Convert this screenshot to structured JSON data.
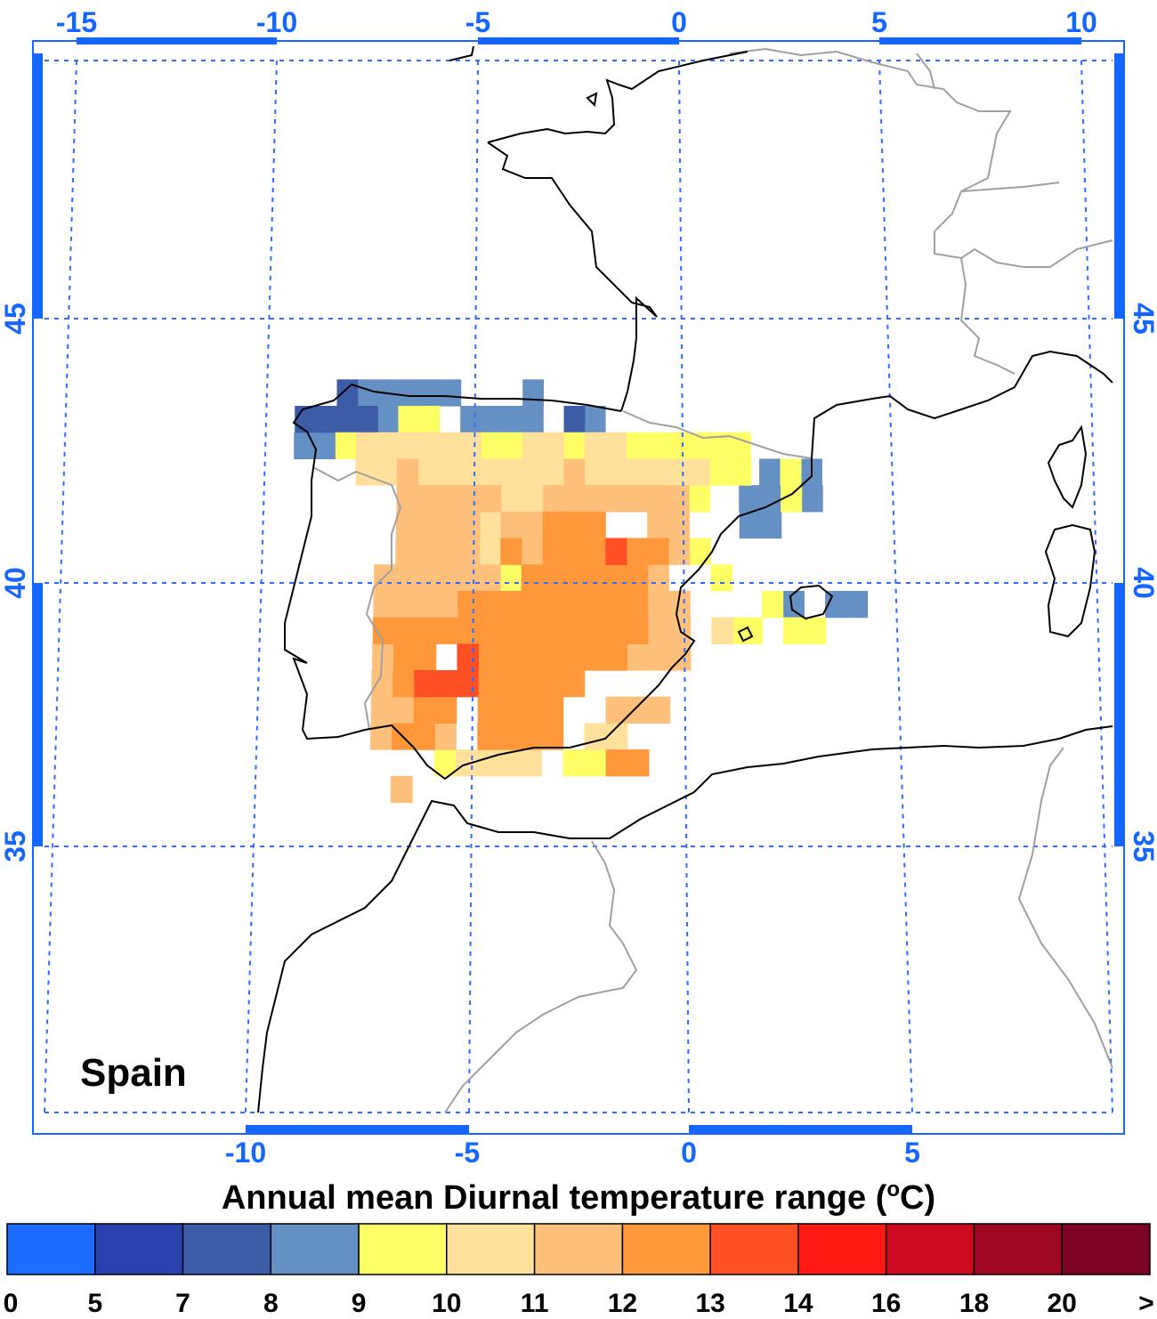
{
  "region_label": "Spain",
  "colors": {
    "axis": "#1565ff",
    "grid": "#2f6bff",
    "coast": "#000000",
    "border": "#a0a0a0"
  },
  "top_axis": [
    "-15",
    "-10",
    "-5",
    "0",
    "5",
    "10"
  ],
  "bottom_axis": [
    "-10",
    "-5",
    "0",
    "5"
  ],
  "left_axis": [
    "45",
    "40",
    "35"
  ],
  "right_axis": [
    "45",
    "40",
    "35"
  ],
  "colorbar": {
    "title": "Annual mean Diurnal temperature range (",
    "title_sup": "o",
    "title_unit": "C)",
    "labels": [
      "0",
      "5",
      "7",
      "8",
      "9",
      "10",
      "11",
      "12",
      "13",
      "14",
      "16",
      "18",
      "20",
      ">"
    ],
    "colors": [
      "#1c6cff",
      "#2a3fae",
      "#3d5ca7",
      "#6590c4",
      "#ffff66",
      "#ffe19c",
      "#ffc07c",
      "#ff973b",
      "#ff4f24",
      "#ff1a14",
      "#cc0a1e",
      "#9e0722",
      "#7a0324"
    ]
  },
  "chart_data": {
    "type": "heatmap",
    "title": "Annual mean Diurnal temperature range (°C)",
    "xlabel": "",
    "ylabel": "",
    "region": "Spain",
    "lon_range": [
      -15,
      10
    ],
    "lat_range": [
      30,
      48
    ],
    "bins": [
      0,
      5,
      7,
      8,
      9,
      10,
      11,
      12,
      13,
      14,
      16,
      18,
      20
    ],
    "bin_values": [
      {
        "bin": 3,
        "cells": [
          [
            -7.6,
            43.6
          ],
          [
            -7.1,
            43.6
          ],
          [
            -6.6,
            43.6
          ],
          [
            -6.1,
            43.6
          ],
          [
            -5.6,
            43.6
          ],
          [
            -3.6,
            43.6
          ],
          [
            -7.1,
            43.1
          ],
          [
            -5.1,
            43.1
          ],
          [
            -4.6,
            43.1
          ],
          [
            -4.1,
            43.1
          ],
          [
            -3.6,
            43.1
          ],
          [
            -2.1,
            43.1
          ],
          [
            -9.1,
            42.6
          ],
          [
            -8.6,
            42.6
          ],
          [
            2.1,
            42.1
          ],
          [
            3.1,
            42.1
          ],
          [
            1.6,
            41.6
          ],
          [
            2.1,
            41.6
          ],
          [
            3.1,
            41.6
          ],
          [
            1.6,
            41.1
          ],
          [
            2.1,
            41.1
          ],
          [
            3.6,
            39.6
          ],
          [
            4.1,
            39.6
          ],
          [
            2.6,
            39.6
          ]
        ]
      },
      {
        "bin": 2,
        "cells": [
          [
            -9.1,
            43.1
          ],
          [
            -8.6,
            43.1
          ],
          [
            -8.1,
            43.1
          ],
          [
            -7.6,
            43.1
          ],
          [
            -8.1,
            43.6
          ],
          [
            -2.6,
            43.1
          ]
        ]
      },
      {
        "bin": 4,
        "cells": [
          [
            -6.6,
            43.1
          ],
          [
            -6.1,
            43.1
          ],
          [
            -8.1,
            42.6
          ],
          [
            -4.6,
            42.6
          ],
          [
            -4.1,
            42.6
          ],
          [
            -2.6,
            42.6
          ],
          [
            -1.1,
            42.6
          ],
          [
            -0.6,
            42.6
          ],
          [
            -0.1,
            42.6
          ],
          [
            0.4,
            42.6
          ],
          [
            0.9,
            42.6
          ],
          [
            1.4,
            42.6
          ],
          [
            0.9,
            42.1
          ],
          [
            1.4,
            42.1
          ],
          [
            2.6,
            42.1
          ],
          [
            0.4,
            41.6
          ],
          [
            2.6,
            41.6
          ],
          [
            -4.1,
            40.1
          ],
          [
            -5.6,
            36.6
          ],
          [
            -2.1,
            36.6
          ],
          [
            -2.6,
            36.6
          ],
          [
            0.4,
            40.6
          ],
          [
            0.9,
            40.1
          ],
          [
            2.1,
            39.6
          ],
          [
            1.1,
            39.1
          ],
          [
            1.6,
            39.1
          ],
          [
            2.6,
            39.1
          ],
          [
            3.1,
            39.1
          ]
        ]
      },
      {
        "bin": 5,
        "cells": [
          [
            -7.6,
            42.6
          ],
          [
            -7.1,
            42.6
          ],
          [
            -6.6,
            42.6
          ],
          [
            -6.1,
            42.6
          ],
          [
            -5.6,
            42.6
          ],
          [
            -5.1,
            42.6
          ],
          [
            -3.6,
            42.6
          ],
          [
            -3.1,
            42.6
          ],
          [
            -2.1,
            42.6
          ],
          [
            -1.6,
            42.6
          ],
          [
            -7.6,
            42.1
          ],
          [
            -7.1,
            42.1
          ],
          [
            -6.1,
            42.1
          ],
          [
            -5.6,
            42.1
          ],
          [
            -5.1,
            42.1
          ],
          [
            -4.6,
            42.1
          ],
          [
            -4.1,
            42.1
          ],
          [
            -3.6,
            42.1
          ],
          [
            -3.1,
            42.1
          ],
          [
            -2.1,
            42.1
          ],
          [
            -1.6,
            42.1
          ],
          [
            -1.1,
            42.1
          ],
          [
            -0.6,
            42.1
          ],
          [
            -0.1,
            42.1
          ],
          [
            0.4,
            42.1
          ],
          [
            -4.1,
            41.6
          ],
          [
            -3.6,
            41.6
          ],
          [
            -4.6,
            41.1
          ],
          [
            -4.6,
            40.6
          ],
          [
            0.9,
            39.1
          ],
          [
            -5.1,
            36.6
          ],
          [
            -4.6,
            36.6
          ],
          [
            -4.1,
            36.6
          ],
          [
            -3.6,
            36.6
          ],
          [
            -1.6,
            37.1
          ],
          [
            -2.1,
            37.1
          ]
        ]
      },
      {
        "bin": 6,
        "cells": [
          [
            -6.6,
            42.1
          ],
          [
            -2.6,
            42.1
          ],
          [
            -6.6,
            41.6
          ],
          [
            -6.1,
            41.6
          ],
          [
            -5.6,
            41.6
          ],
          [
            -5.1,
            41.6
          ],
          [
            -4.6,
            41.6
          ],
          [
            -3.1,
            41.6
          ],
          [
            -2.6,
            41.6
          ],
          [
            -2.1,
            41.6
          ],
          [
            -1.6,
            41.6
          ],
          [
            -1.1,
            41.6
          ],
          [
            -0.6,
            41.6
          ],
          [
            -0.1,
            41.6
          ],
          [
            -6.6,
            41.1
          ],
          [
            -6.1,
            41.1
          ],
          [
            -5.6,
            41.1
          ],
          [
            -5.1,
            41.1
          ],
          [
            -4.1,
            41.1
          ],
          [
            -3.6,
            41.1
          ],
          [
            -0.6,
            41.1
          ],
          [
            -0.1,
            41.1
          ],
          [
            -6.6,
            40.6
          ],
          [
            -6.1,
            40.6
          ],
          [
            -5.6,
            40.6
          ],
          [
            -5.1,
            40.6
          ],
          [
            -3.6,
            40.6
          ],
          [
            -0.1,
            40.6
          ],
          [
            -7.1,
            40.1
          ],
          [
            -6.6,
            40.1
          ],
          [
            -6.1,
            40.1
          ],
          [
            -5.6,
            40.1
          ],
          [
            -5.1,
            40.1
          ],
          [
            -4.6,
            40.1
          ],
          [
            -0.6,
            40.1
          ],
          [
            -7.1,
            39.6
          ],
          [
            -6.6,
            39.6
          ],
          [
            -6.1,
            39.6
          ],
          [
            -5.6,
            39.6
          ],
          [
            -0.6,
            39.6
          ],
          [
            -0.1,
            39.6
          ],
          [
            -0.6,
            39.1
          ],
          [
            -0.1,
            39.1
          ],
          [
            -1.1,
            38.6
          ],
          [
            -0.6,
            38.6
          ],
          [
            -0.1,
            38.6
          ],
          [
            -7.1,
            38.6
          ],
          [
            -7.1,
            38.1
          ],
          [
            -7.1,
            37.6
          ],
          [
            -6.6,
            37.6
          ],
          [
            -1.6,
            37.6
          ],
          [
            -1.1,
            37.6
          ],
          [
            -0.6,
            37.6
          ],
          [
            -7.1,
            37.1
          ],
          [
            -6.1,
            37.1
          ],
          [
            -5.6,
            37.1
          ],
          [
            -6.6,
            36.1
          ]
        ]
      },
      {
        "bin": 7,
        "cells": [
          [
            -3.1,
            41.1
          ],
          [
            -2.6,
            41.1
          ],
          [
            -2.1,
            41.1
          ],
          [
            -3.1,
            40.6
          ],
          [
            -2.6,
            40.6
          ],
          [
            -2.1,
            40.6
          ],
          [
            -1.1,
            40.6
          ],
          [
            -0.6,
            40.6
          ],
          [
            -4.1,
            40.6
          ],
          [
            -3.6,
            40.1
          ],
          [
            -3.1,
            40.1
          ],
          [
            -2.6,
            40.1
          ],
          [
            -2.1,
            40.1
          ],
          [
            -1.6,
            40.1
          ],
          [
            -1.1,
            40.1
          ],
          [
            -5.1,
            39.6
          ],
          [
            -4.6,
            39.6
          ],
          [
            -4.1,
            39.6
          ],
          [
            -3.6,
            39.6
          ],
          [
            -3.1,
            39.6
          ],
          [
            -2.6,
            39.6
          ],
          [
            -2.1,
            39.6
          ],
          [
            -1.6,
            39.6
          ],
          [
            -1.1,
            39.6
          ],
          [
            -7.1,
            39.1
          ],
          [
            -6.6,
            39.1
          ],
          [
            -6.1,
            39.1
          ],
          [
            -5.6,
            39.1
          ],
          [
            -5.1,
            39.1
          ],
          [
            -4.6,
            39.1
          ],
          [
            -4.1,
            39.1
          ],
          [
            -3.6,
            39.1
          ],
          [
            -3.1,
            39.1
          ],
          [
            -2.6,
            39.1
          ],
          [
            -2.1,
            39.1
          ],
          [
            -1.6,
            39.1
          ],
          [
            -1.1,
            39.1
          ],
          [
            -6.6,
            38.6
          ],
          [
            -6.1,
            38.6
          ],
          [
            -4.6,
            38.6
          ],
          [
            -4.1,
            38.6
          ],
          [
            -3.6,
            38.6
          ],
          [
            -3.1,
            38.6
          ],
          [
            -2.6,
            38.6
          ],
          [
            -2.1,
            38.6
          ],
          [
            -1.6,
            38.6
          ],
          [
            -6.6,
            38.1
          ],
          [
            -4.6,
            38.1
          ],
          [
            -4.1,
            38.1
          ],
          [
            -3.6,
            38.1
          ],
          [
            -3.1,
            38.1
          ],
          [
            -2.6,
            38.1
          ],
          [
            -6.6,
            37.1
          ],
          [
            -6.1,
            37.6
          ],
          [
            -5.6,
            37.6
          ],
          [
            -4.6,
            37.6
          ],
          [
            -4.1,
            37.6
          ],
          [
            -3.6,
            37.6
          ],
          [
            -3.1,
            37.6
          ],
          [
            -6.1,
            37.1
          ],
          [
            -4.6,
            37.1
          ],
          [
            -4.1,
            37.1
          ],
          [
            -3.6,
            37.1
          ],
          [
            -3.1,
            37.1
          ],
          [
            -1.6,
            36.6
          ],
          [
            -1.1,
            36.6
          ]
        ]
      },
      {
        "bin": 8,
        "cells": [
          [
            -1.6,
            40.6
          ],
          [
            -5.1,
            38.6
          ],
          [
            -6.1,
            38.1
          ],
          [
            -5.6,
            38.1
          ],
          [
            -5.1,
            38.1
          ]
        ]
      }
    ]
  }
}
